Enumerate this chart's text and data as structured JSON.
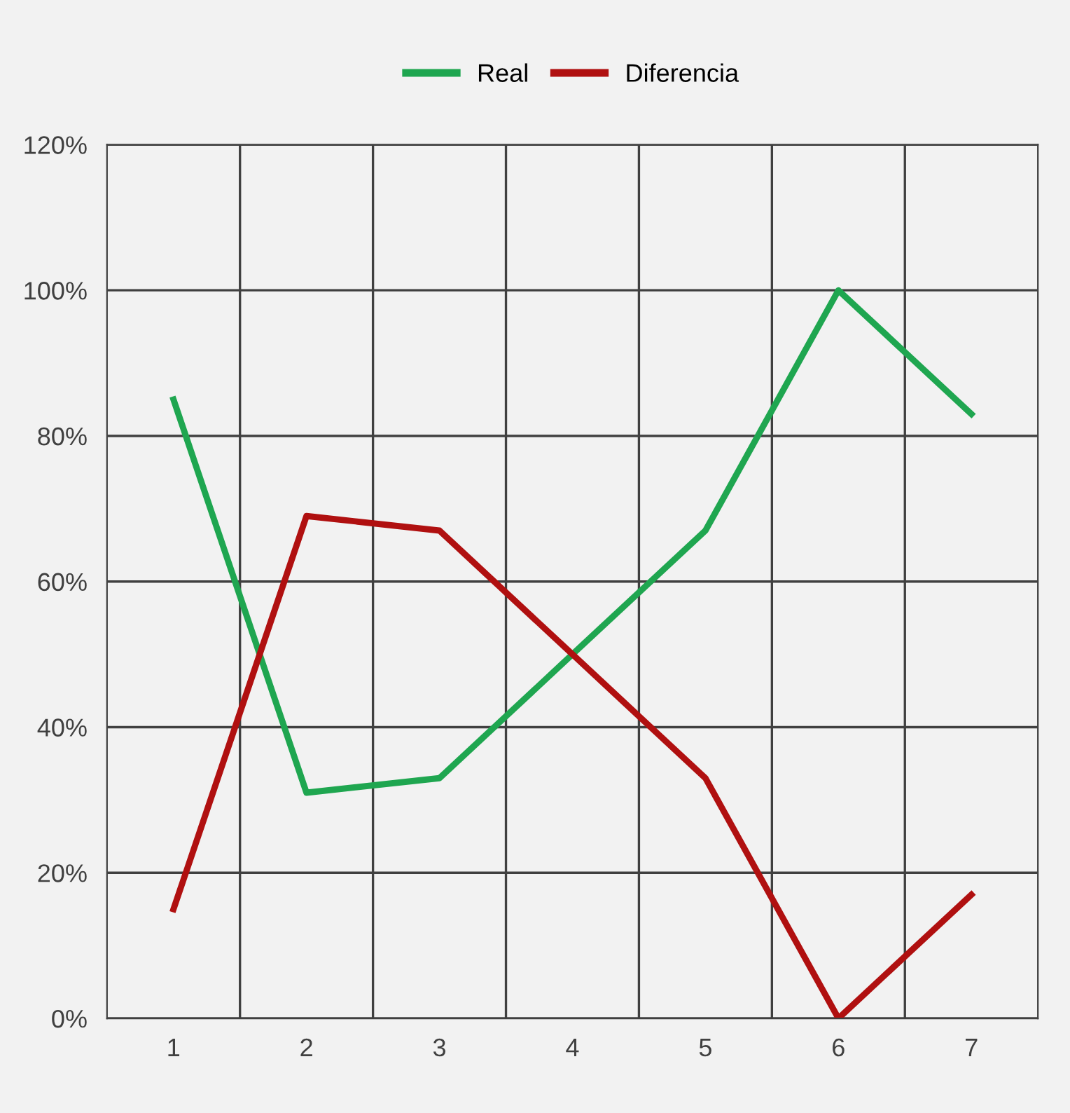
{
  "chart_data": {
    "type": "line",
    "categories": [
      "1",
      "2",
      "3",
      "4",
      "5",
      "6",
      "7"
    ],
    "series": [
      {
        "name": "Real",
        "color": "#1fa650",
        "values": [
          85,
          31,
          33,
          50,
          67,
          100,
          83
        ]
      },
      {
        "name": "Diferencia",
        "color": "#b01010",
        "values": [
          15,
          69,
          67,
          50,
          33,
          0,
          17
        ]
      }
    ],
    "ylim": [
      0,
      120
    ],
    "yticks": [
      {
        "value": 0,
        "label": "0%"
      },
      {
        "value": 20,
        "label": "20%"
      },
      {
        "value": 40,
        "label": "40%"
      },
      {
        "value": 60,
        "label": "60%"
      },
      {
        "value": 80,
        "label": "80%"
      },
      {
        "value": 100,
        "label": "100%"
      },
      {
        "value": 120,
        "label": "120%"
      }
    ],
    "grid": true,
    "legend": "top",
    "marker": "none",
    "line_style": "solid"
  }
}
